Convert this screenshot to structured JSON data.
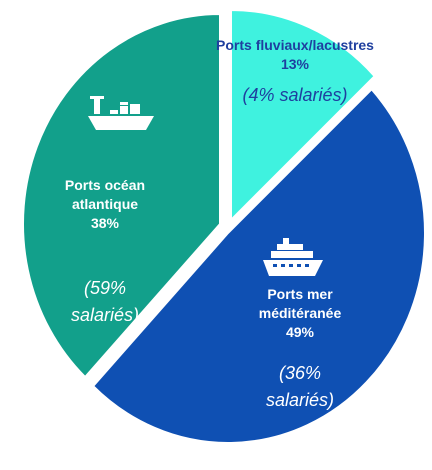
{
  "chart_data": {
    "type": "pie",
    "categories": [
      "Ports fluviaux/lacustres",
      "Ports mer méditéranée",
      "Ports océan atlantique"
    ],
    "values": [
      13,
      49,
      38
    ],
    "value_labels": [
      "13%",
      "49%",
      "38%"
    ],
    "notes": [
      "(4% salariés)",
      "(36% salariés)",
      "(59% salariés)"
    ],
    "colors": [
      "#3ff2df",
      "#0f50b3",
      "#12a08b"
    ]
  }
}
